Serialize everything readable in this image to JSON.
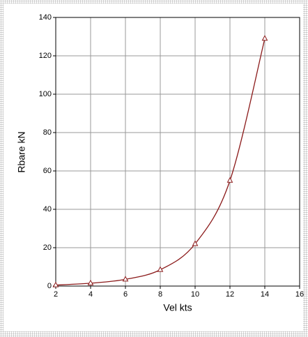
{
  "chart_data": {
    "type": "line",
    "x_label": "Vel kts",
    "y_label": "Rbare kN",
    "x": [
      2,
      4,
      6,
      8,
      10,
      12,
      14
    ],
    "series": [
      {
        "color": "#8b1a1a",
        "values": [
          0.5,
          1.5,
          3.5,
          8.5,
          22,
          55,
          129
        ]
      }
    ],
    "xlim": [
      2,
      16
    ],
    "xticks": [
      2,
      4,
      6,
      8,
      10,
      12,
      14,
      16
    ],
    "ylim": [
      0,
      140
    ],
    "yticks": [
      0,
      20,
      40,
      60,
      80,
      100,
      120,
      140
    ],
    "grid": true
  }
}
